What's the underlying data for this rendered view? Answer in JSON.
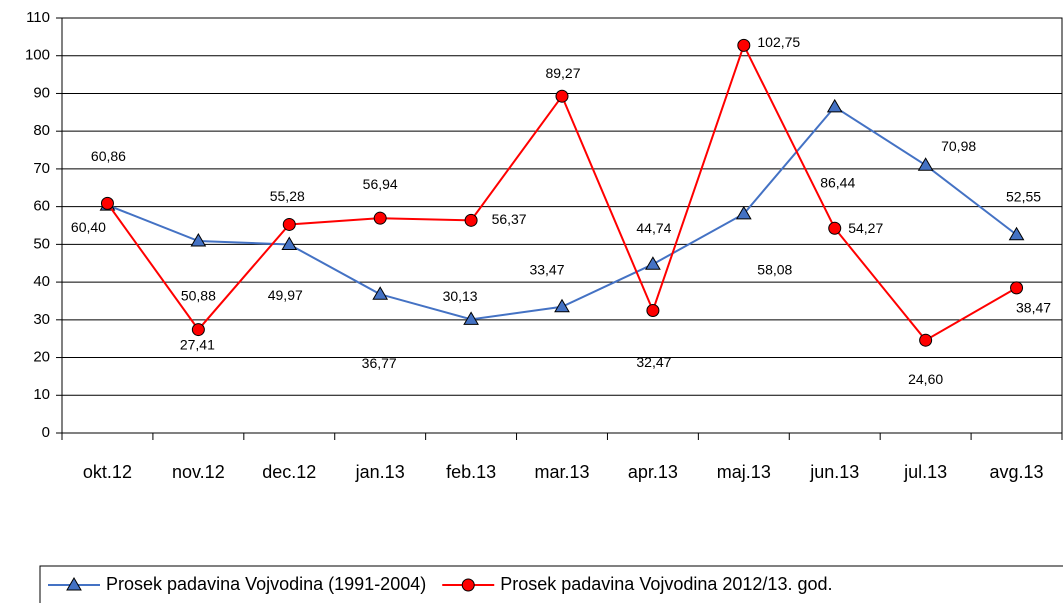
{
  "chart_data": {
    "type": "line",
    "categories": [
      "okt.12",
      "nov.12",
      "dec.12",
      "jan.13",
      "feb.13",
      "mar.13",
      "apr.13",
      "maj.13",
      "jun.13",
      "jul.13",
      "avg.13"
    ],
    "series": [
      {
        "name": "Prosek padavina Vojvodina (1991-2004)",
        "color": "#4472c4",
        "marker": "triangle",
        "values": [
          60.4,
          50.88,
          49.97,
          36.77,
          30.13,
          33.47,
          44.74,
          58.08,
          86.44,
          70.98,
          52.55
        ],
        "value_labels": [
          "60,40",
          "50,88",
          "49,97",
          "36,77",
          "30,13",
          "33,47",
          "44,74",
          "58,08",
          "86,44",
          "70,98",
          "52,55"
        ]
      },
      {
        "name": "Prosek padavina Vojvodina 2012/13. god.",
        "color": "#ff0000",
        "marker": "circle",
        "values": [
          60.86,
          27.41,
          55.28,
          56.94,
          56.37,
          89.27,
          32.47,
          102.75,
          54.27,
          24.6,
          38.47
        ],
        "value_labels": [
          "60,86",
          "27,41",
          "55,28",
          "56,94",
          "56,37",
          "89,27",
          "32,47",
          "102,75",
          "54,27",
          "24,60",
          "38,47"
        ]
      }
    ],
    "ylim": [
      0,
      110
    ],
    "yticks": [
      0,
      10,
      20,
      30,
      40,
      50,
      60,
      70,
      80,
      90,
      100,
      110
    ],
    "grid": true,
    "legend": "bottom"
  }
}
